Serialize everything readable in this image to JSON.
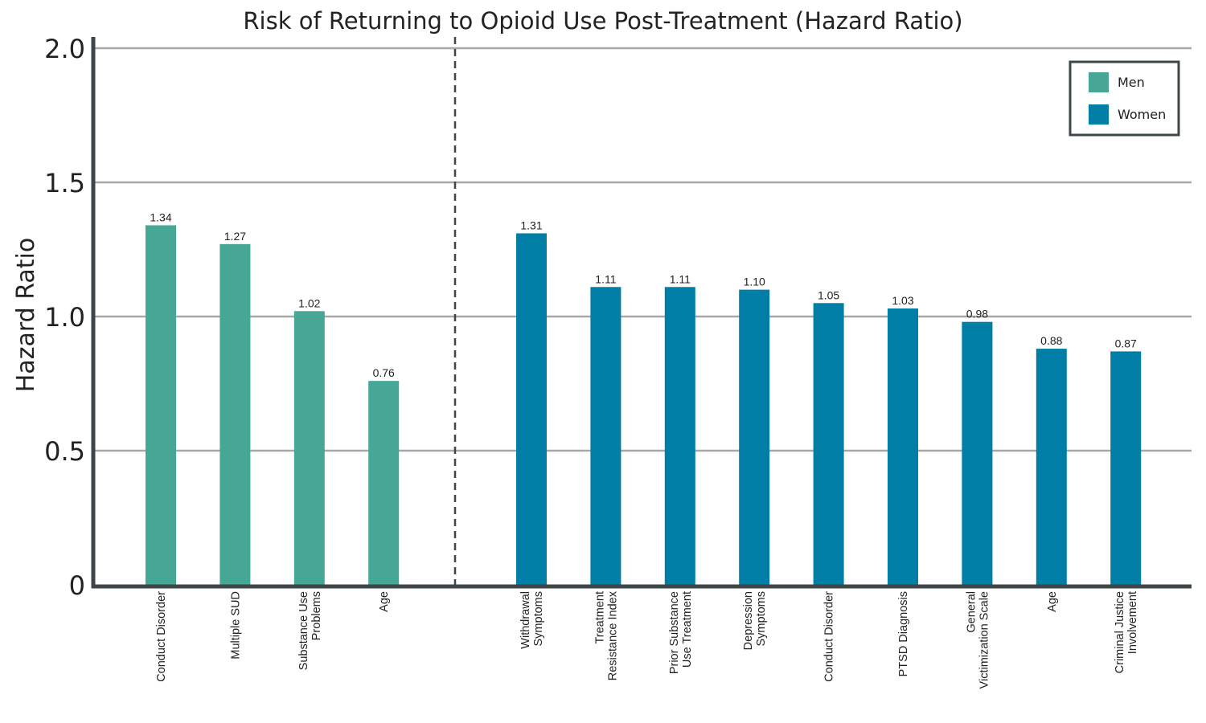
{
  "chart_data": {
    "type": "bar",
    "title": "Risk of Returning to Opioid Use Post-Treatment (Hazard Ratio)",
    "ylabel": "Hazard Ratio",
    "ylim": [
      0,
      2.0
    ],
    "yticks": [
      "0",
      "0.5",
      "1.0",
      "1.5",
      "2.0"
    ],
    "grid": true,
    "legend_position": "top-right",
    "divider": "dashed vertical line separating Men and Women groups",
    "series": [
      {
        "name": "Men",
        "color": "#45a794",
        "categories": [
          [
            "Conduct Disorder"
          ],
          [
            "Multiple SUD"
          ],
          [
            "Substance Use",
            "Problems"
          ],
          [
            "Age"
          ]
        ],
        "values": [
          1.34,
          1.27,
          1.02,
          0.76
        ],
        "value_labels": [
          "1.34",
          "1.27",
          "1.02",
          "0.76"
        ]
      },
      {
        "name": "Women",
        "color": "#007ea6",
        "categories": [
          [
            "Withdrawal",
            "Symptoms"
          ],
          [
            "Treatment",
            "Resistance Index"
          ],
          [
            "Prior Substance",
            "Use Treatment"
          ],
          [
            "Depression",
            "Symptoms"
          ],
          [
            "Conduct Disorder"
          ],
          [
            "PTSD Diagnosis"
          ],
          [
            "General",
            "Victimization Scale"
          ],
          [
            "Age"
          ],
          [
            "Criminal Justice",
            "Involvement"
          ]
        ],
        "values": [
          1.31,
          1.11,
          1.11,
          1.1,
          1.05,
          1.03,
          0.98,
          0.88,
          0.87
        ],
        "value_labels": [
          "1.31",
          "1.11",
          "1.11",
          "1.10",
          "1.05",
          "1.03",
          "0.98",
          "0.88",
          "0.87"
        ]
      }
    ],
    "colors": {
      "axis": "#3d4649",
      "grid": "#a8a8a8",
      "divider": "#3d4649"
    }
  }
}
